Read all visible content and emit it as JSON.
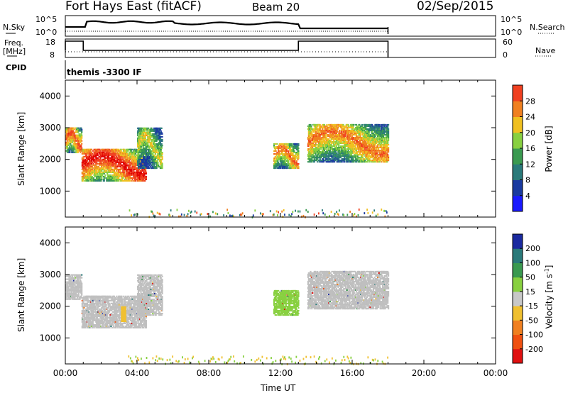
{
  "header": {
    "station": "Fort Hays East (fitACF)",
    "beam": "Beam 20",
    "date": "02/Sep/2015"
  },
  "params_panel": {
    "nsky_label": "N.Sky",
    "nsky_ticks": [
      "10^5",
      "10^0"
    ],
    "nsearch_label": "N.Search",
    "nsearch_ticks": [
      "10^5",
      "10^0"
    ],
    "freq_label": "Freq.",
    "freq_unit": "[MHz]",
    "freq_ticks": [
      "18",
      "8"
    ],
    "nave_label": "Nave",
    "nave_ticks": [
      "60",
      "0"
    ],
    "cpid_label": "CPID",
    "cpid_value": "themis -3300 IF"
  },
  "colors": {
    "power_scale": [
      "#1a1aff",
      "#1a3aa0",
      "#2a7a7a",
      "#3a9a50",
      "#88d040",
      "#f0c020",
      "#f08020",
      "#f04020",
      "#e00000"
    ],
    "velocity_scale": [
      "#e01010",
      "#f05010",
      "#f08020",
      "#f0c030",
      "#c8c8c8",
      "#88d040",
      "#3a9a50",
      "#2a7a7a",
      "#1a2aa0"
    ],
    "ground_scatter": "#bfbfbf"
  },
  "chart_data": [
    {
      "type": "heatmap",
      "panel": "power",
      "ylabel": "Slant Range [km]",
      "y_ticks": [
        "1000",
        "2000",
        "3000",
        "4000"
      ],
      "ylim": [
        180,
        4500
      ],
      "xlim": [
        0,
        24
      ],
      "colorbar_label": "Power [dB]",
      "colorbar_ticks": [
        "4",
        "8",
        "12",
        "16",
        "20",
        "24",
        "28"
      ],
      "scatter_regions": [
        {
          "t_start": 0.0,
          "t_end": 0.9,
          "r_low": 2200,
          "r_high": 3000,
          "power": 20
        },
        {
          "t_start": 0.9,
          "t_end": 4.5,
          "r_low": 1300,
          "r_high": 2300,
          "power": 24
        },
        {
          "t_start": 4.0,
          "t_end": 5.4,
          "r_low": 1700,
          "r_high": 3000,
          "power": 12
        },
        {
          "t_start": 11.6,
          "t_end": 13.0,
          "r_low": 1700,
          "r_high": 2500,
          "power": 18
        },
        {
          "t_start": 13.5,
          "t_end": 18.0,
          "r_low": 1900,
          "r_high": 3100,
          "power": 18
        }
      ]
    },
    {
      "type": "heatmap",
      "panel": "velocity",
      "ylabel": "Slant Range [km]",
      "y_ticks": [
        "1000",
        "2000",
        "3000",
        "4000"
      ],
      "ylim": [
        180,
        4500
      ],
      "xlim": [
        0,
        24
      ],
      "colorbar_label": "Velocity [m s^-1]",
      "colorbar_ticks": [
        "-200",
        "-100",
        "-50",
        "-15",
        "15",
        "50",
        "100",
        "200"
      ],
      "xlabel": "Time UT",
      "x_ticks": [
        "00:00",
        "04:00",
        "08:00",
        "12:00",
        "16:00",
        "20:00",
        "00:00"
      ],
      "scatter_regions": [
        {
          "t_start": 0.0,
          "t_end": 0.9,
          "r_low": 2200,
          "r_high": 3000,
          "velocity": 0
        },
        {
          "t_start": 0.9,
          "t_end": 4.5,
          "r_low": 1300,
          "r_high": 2300,
          "velocity": 0
        },
        {
          "t_start": 4.0,
          "t_end": 5.4,
          "r_low": 1700,
          "r_high": 3000,
          "velocity": 0
        },
        {
          "t_start": 11.6,
          "t_end": 13.0,
          "r_low": 1700,
          "r_high": 2500,
          "velocity": 30
        },
        {
          "t_start": 13.5,
          "t_end": 18.0,
          "r_low": 1900,
          "r_high": 3100,
          "velocity": 0
        }
      ]
    }
  ]
}
